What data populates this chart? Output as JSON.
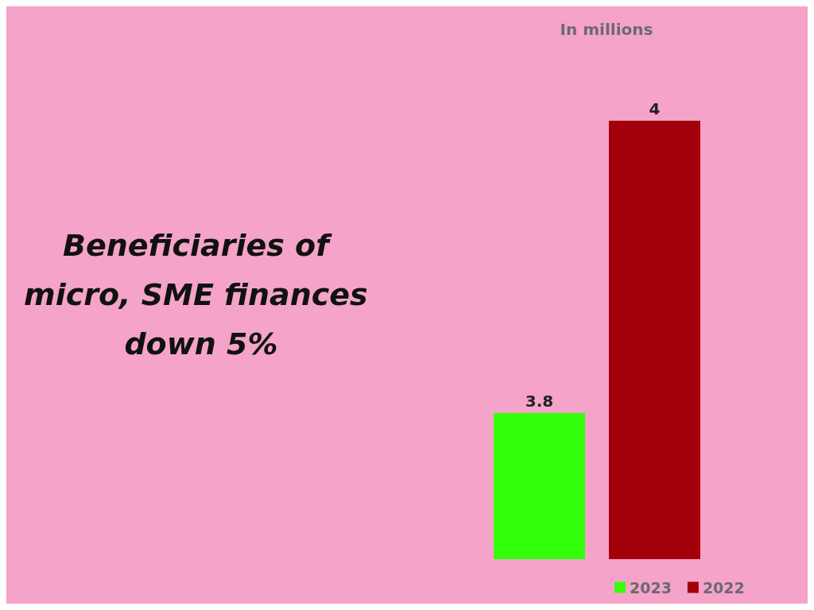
{
  "chart_data": {
    "type": "bar",
    "title": "Beneficiaries of micro, SME finances down 5%",
    "subtitle": "In millions",
    "categories": [
      null
    ],
    "series": [
      {
        "name": "2023",
        "color": "#33ff0a",
        "values": [
          3.8
        ]
      },
      {
        "name": "2022",
        "color": "#a3000b",
        "values": [
          4
        ]
      }
    ],
    "ylim": [
      3.7,
      4
    ],
    "tick_labels": false,
    "data_labels": true,
    "legend": "bottom"
  }
}
